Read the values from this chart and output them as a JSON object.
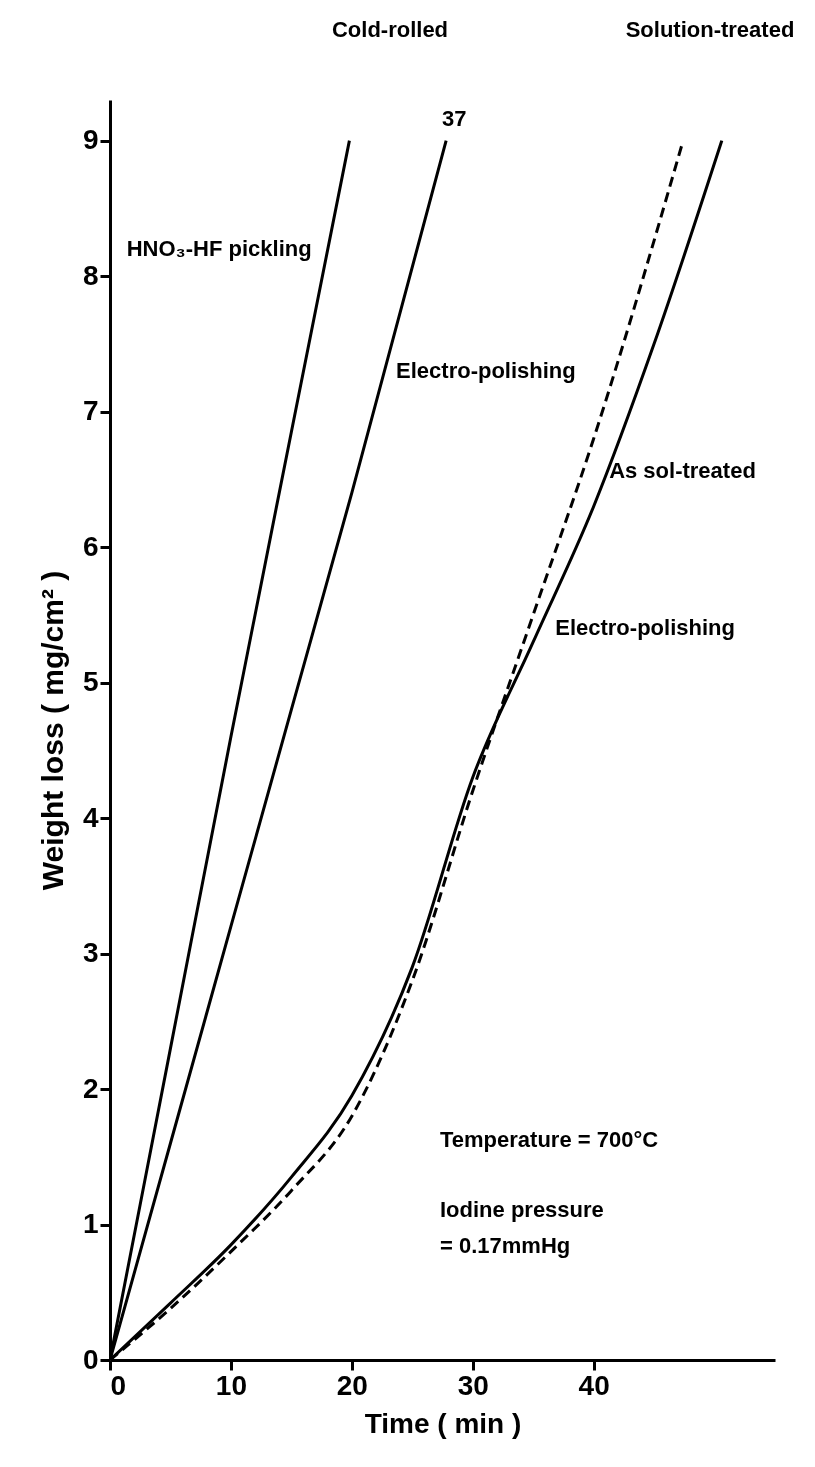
{
  "chart_data": {
    "type": "line",
    "xlabel": "Time ( min )",
    "ylabel": "Weight loss ( mg/cm² )",
    "xlim": [
      0,
      55
    ],
    "ylim": [
      0,
      9.3
    ],
    "xticks": [
      0,
      10,
      20,
      30,
      40
    ],
    "yticks": [
      0,
      1,
      2,
      3,
      4,
      5,
      6,
      7,
      8,
      9
    ],
    "grid": false,
    "legend": false,
    "marker": "none",
    "line_style": "solid",
    "series": [
      {
        "color": "#000000",
        "x": [
          0,
          5,
          10,
          15,
          19.8
        ],
        "values": [
          0,
          2.3,
          4.6,
          6.85,
          9
        ]
      },
      {
        "color": "#000000",
        "x": [
          0,
          5,
          10,
          15,
          20,
          27.8
        ],
        "values": [
          0,
          1.6,
          3.2,
          4.8,
          6.4,
          9
        ]
      },
      {
        "color": "#000000",
        "line_style": "dashed",
        "x": [
          0,
          5,
          10,
          15,
          20,
          25,
          30,
          35,
          40,
          47.4
        ],
        "values": [
          0,
          0.38,
          0.8,
          1.25,
          1.8,
          2.8,
          4.2,
          5.5,
          6.8,
          9
        ]
      },
      {
        "color": "#000000",
        "x": [
          0,
          5,
          10,
          15,
          20,
          25,
          30,
          35,
          40,
          45,
          50.6
        ],
        "values": [
          0,
          0.42,
          0.85,
          1.35,
          1.95,
          2.9,
          4.3,
          5.3,
          6.3,
          7.5,
          9
        ]
      }
    ],
    "annotations": [
      "Cold-rolled",
      "Solution-treated",
      {
        "text": "HNO₃-HF pickling",
        "x": 18.0,
        "y": 8.2
      },
      {
        "text": "Electro-polishing",
        "x": 22.5,
        "y": 7.3
      },
      {
        "text": "As sol-treated",
        "x": 38.8,
        "y": 6.5
      },
      {
        "text": "Electro-polishing",
        "x": 35.5,
        "y": 5.4
      },
      {
        "text": "37",
        "x": 27.8,
        "y": 9
      },
      "Temperature = 700°C",
      "Iodine pressure = 0.17mmHg"
    ]
  }
}
